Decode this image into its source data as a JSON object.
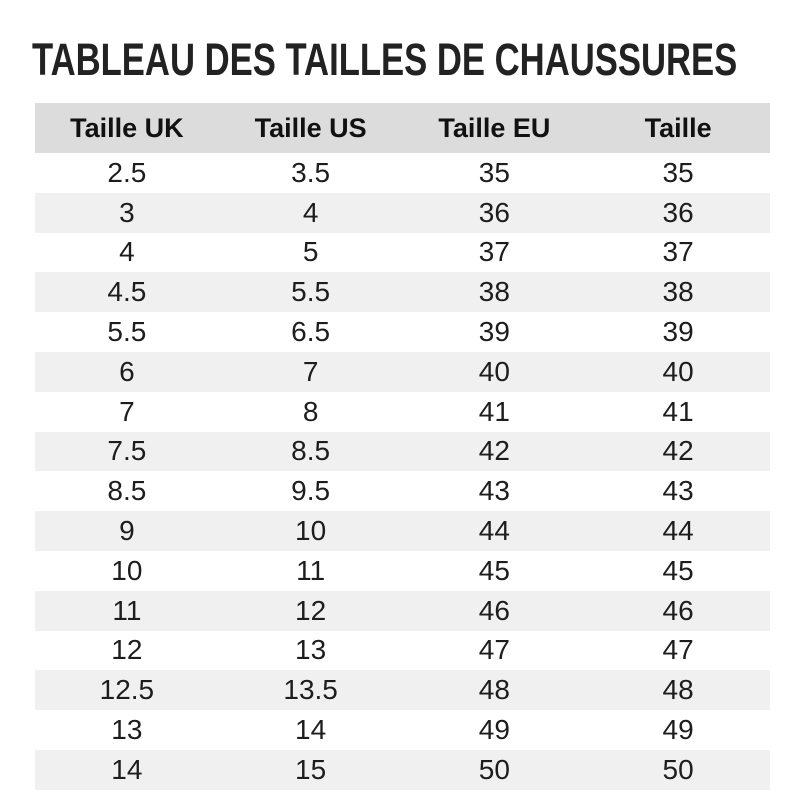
{
  "page": {
    "title": "TABLEAU DES TAILLES DE CHAUSSURES"
  },
  "table": {
    "headers": [
      "Taille UK",
      "Taille US",
      "Taille EU",
      "Taille"
    ],
    "rows": [
      [
        "2.5",
        "3.5",
        "35",
        "35"
      ],
      [
        "3",
        "4",
        "36",
        "36"
      ],
      [
        "4",
        "5",
        "37",
        "37"
      ],
      [
        "4.5",
        "5.5",
        "38",
        "38"
      ],
      [
        "5.5",
        "6.5",
        "39",
        "39"
      ],
      [
        "6",
        "7",
        "40",
        "40"
      ],
      [
        "7",
        "8",
        "41",
        "41"
      ],
      [
        "7.5",
        "8.5",
        "42",
        "42"
      ],
      [
        "8.5",
        "9.5",
        "43",
        "43"
      ],
      [
        "9",
        "10",
        "44",
        "44"
      ],
      [
        "10",
        "11",
        "45",
        "45"
      ],
      [
        "11",
        "12",
        "46",
        "46"
      ],
      [
        "12",
        "13",
        "47",
        "47"
      ],
      [
        "12.5",
        "13.5",
        "48",
        "48"
      ],
      [
        "13",
        "14",
        "49",
        "49"
      ],
      [
        "14",
        "15",
        "50",
        "50"
      ]
    ],
    "colors": {
      "header_bg": "#dcdcdc",
      "stripe_bg": "#f0f0f0",
      "text": "#1d1d1d"
    }
  }
}
